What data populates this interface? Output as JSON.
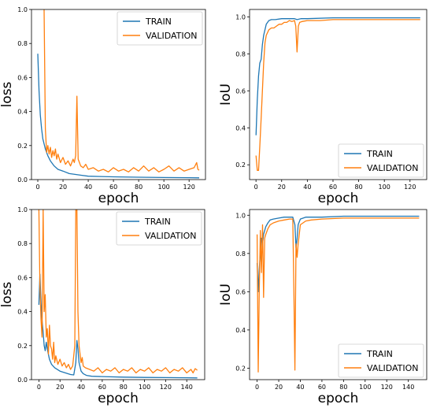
{
  "colors": {
    "train": "#1f77b4",
    "validation": "#ff7f0e"
  },
  "chart_data": [
    {
      "type": "line",
      "xlabel": "epoch",
      "ylabel": "loss",
      "xlim": [
        -5,
        133
      ],
      "ylim": [
        0,
        1
      ],
      "xticks": [
        0,
        20,
        40,
        60,
        80,
        100,
        120
      ],
      "yticks": [
        0.0,
        0.2,
        0.4,
        0.6,
        0.8,
        1.0
      ],
      "ytick_labels": [
        "0.0",
        "0.2",
        "0.4",
        "0.6",
        "0.8",
        "1.0"
      ],
      "legend": "top-right",
      "grid": false,
      "series": [
        {
          "name": "TRAIN",
          "color_key": "train",
          "x": [
            0,
            1,
            2,
            3,
            4,
            6,
            8,
            10,
            13,
            16,
            20,
            25,
            30,
            35,
            40,
            50,
            60,
            80,
            100,
            120,
            128
          ],
          "y": [
            0.74,
            0.52,
            0.38,
            0.3,
            0.24,
            0.18,
            0.14,
            0.11,
            0.08,
            0.06,
            0.05,
            0.035,
            0.03,
            0.025,
            0.02,
            0.018,
            0.016,
            0.014,
            0.012,
            0.011,
            0.01
          ]
        },
        {
          "name": "VALIDATION",
          "color_key": "validation",
          "x": [
            5,
            6,
            7,
            8,
            9,
            10,
            11,
            12,
            13,
            14,
            15,
            16,
            18,
            20,
            22,
            24,
            26,
            28,
            29,
            30,
            31,
            32,
            33,
            34,
            36,
            38,
            40,
            44,
            48,
            52,
            56,
            60,
            64,
            68,
            72,
            76,
            80,
            84,
            88,
            92,
            96,
            100,
            104,
            108,
            112,
            116,
            120,
            124,
            126,
            127,
            128
          ],
          "y": [
            1.0,
            0.3,
            0.16,
            0.2,
            0.15,
            0.19,
            0.13,
            0.17,
            0.14,
            0.18,
            0.12,
            0.15,
            0.1,
            0.13,
            0.09,
            0.11,
            0.08,
            0.12,
            0.1,
            0.14,
            0.49,
            0.12,
            0.1,
            0.08,
            0.07,
            0.09,
            0.06,
            0.07,
            0.05,
            0.06,
            0.045,
            0.07,
            0.05,
            0.06,
            0.045,
            0.07,
            0.05,
            0.08,
            0.05,
            0.07,
            0.045,
            0.06,
            0.08,
            0.05,
            0.07,
            0.05,
            0.06,
            0.07,
            0.1,
            0.06,
            0.055
          ]
        }
      ]
    },
    {
      "type": "line",
      "xlabel": "epoch",
      "ylabel": "IoU",
      "xlim": [
        -5,
        133
      ],
      "ylim": [
        0.12,
        1.04
      ],
      "xticks": [
        0,
        20,
        40,
        60,
        80,
        100,
        120
      ],
      "yticks": [
        0.2,
        0.4,
        0.6,
        0.8,
        1.0
      ],
      "ytick_labels": [
        "0.2",
        "0.4",
        "0.6",
        "0.8",
        "1.0"
      ],
      "legend": "bottom-right",
      "grid": false,
      "series": [
        {
          "name": "TRAIN",
          "color_key": "train",
          "x": [
            0,
            1,
            2,
            3,
            4,
            5,
            6,
            8,
            10,
            12,
            15,
            20,
            25,
            30,
            32,
            35,
            40,
            60,
            80,
            100,
            120,
            128
          ],
          "y": [
            0.36,
            0.55,
            0.68,
            0.75,
            0.77,
            0.85,
            0.9,
            0.96,
            0.98,
            0.985,
            0.985,
            0.99,
            0.99,
            0.99,
            0.985,
            0.99,
            0.99,
            0.995,
            0.995,
            0.995,
            0.995,
            0.995
          ]
        },
        {
          "name": "VALIDATION",
          "color_key": "validation",
          "x": [
            0,
            1,
            2,
            3,
            4,
            5,
            6,
            7,
            8,
            10,
            12,
            14,
            16,
            18,
            20,
            22,
            24,
            26,
            28,
            30,
            31,
            32,
            33,
            34,
            36,
            40,
            50,
            60,
            80,
            100,
            120,
            128
          ],
          "y": [
            0.25,
            0.17,
            0.17,
            0.3,
            0.45,
            0.6,
            0.75,
            0.86,
            0.9,
            0.93,
            0.94,
            0.94,
            0.95,
            0.96,
            0.96,
            0.97,
            0.97,
            0.98,
            0.975,
            0.98,
            0.95,
            0.81,
            0.95,
            0.97,
            0.975,
            0.98,
            0.98,
            0.985,
            0.985,
            0.985,
            0.985,
            0.985
          ]
        }
      ]
    },
    {
      "type": "line",
      "xlabel": "epoch",
      "ylabel": "loss",
      "xlim": [
        -7,
        157
      ],
      "ylim": [
        0,
        1
      ],
      "xticks": [
        0,
        20,
        40,
        60,
        80,
        100,
        120,
        140
      ],
      "yticks": [
        0.0,
        0.2,
        0.4,
        0.6,
        0.8,
        1.0
      ],
      "ytick_labels": [
        "0.0",
        "0.2",
        "0.4",
        "0.6",
        "0.8",
        "1.0"
      ],
      "legend": "top-right",
      "grid": false,
      "series": [
        {
          "name": "TRAIN",
          "color_key": "train",
          "x": [
            0,
            1,
            2,
            3,
            4,
            5,
            6,
            7,
            8,
            10,
            12,
            15,
            20,
            25,
            30,
            33,
            35,
            36,
            37,
            38,
            40,
            42,
            45,
            50,
            60,
            80,
            100,
            120,
            140,
            150
          ],
          "y": [
            0.44,
            0.62,
            0.45,
            0.35,
            0.28,
            0.2,
            0.17,
            0.22,
            0.18,
            0.12,
            0.09,
            0.07,
            0.05,
            0.04,
            0.03,
            0.028,
            0.1,
            0.23,
            0.18,
            0.1,
            0.05,
            0.035,
            0.025,
            0.02,
            0.018,
            0.015,
            0.013,
            0.012,
            0.011,
            0.01
          ]
        },
        {
          "name": "VALIDATION",
          "color_key": "validation",
          "x": [
            0,
            1,
            2,
            3,
            4,
            5,
            6,
            7,
            8,
            9,
            10,
            11,
            12,
            13,
            14,
            15,
            16,
            18,
            20,
            22,
            24,
            26,
            28,
            30,
            32,
            34,
            35,
            36,
            37,
            38,
            39,
            40,
            41,
            42,
            44,
            48,
            52,
            56,
            60,
            64,
            68,
            72,
            76,
            80,
            84,
            88,
            92,
            96,
            100,
            104,
            108,
            112,
            116,
            120,
            124,
            128,
            132,
            136,
            140,
            144,
            146,
            148,
            150
          ],
          "y": [
            1.0,
            0.55,
            0.35,
            0.25,
            1.0,
            0.4,
            0.5,
            0.25,
            0.3,
            0.15,
            0.32,
            0.2,
            0.18,
            0.12,
            0.22,
            0.1,
            0.14,
            0.09,
            0.12,
            0.08,
            0.1,
            0.07,
            0.09,
            0.06,
            0.08,
            0.2,
            1.0,
            1.0,
            0.4,
            0.2,
            0.15,
            0.1,
            0.13,
            0.08,
            0.07,
            0.06,
            0.05,
            0.07,
            0.04,
            0.06,
            0.05,
            0.07,
            0.04,
            0.06,
            0.05,
            0.07,
            0.04,
            0.06,
            0.05,
            0.07,
            0.04,
            0.06,
            0.05,
            0.07,
            0.04,
            0.06,
            0.05,
            0.07,
            0.04,
            0.06,
            0.04,
            0.065,
            0.055
          ]
        }
      ]
    },
    {
      "type": "line",
      "xlabel": "epoch",
      "ylabel": "IoU",
      "xlim": [
        -7,
        157
      ],
      "ylim": [
        0.14,
        1.03
      ],
      "xticks": [
        0,
        20,
        40,
        60,
        80,
        100,
        120,
        140
      ],
      "yticks": [
        0.2,
        0.4,
        0.6,
        0.8,
        1.0
      ],
      "ytick_labels": [
        "0.2",
        "0.4",
        "0.6",
        "0.8",
        "1.0"
      ],
      "legend": "bottom-right",
      "grid": false,
      "series": [
        {
          "name": "TRAIN",
          "color_key": "train",
          "x": [
            0,
            1,
            2,
            3,
            4,
            5,
            6,
            8,
            10,
            12,
            15,
            20,
            25,
            30,
            33,
            35,
            36,
            37,
            38,
            40,
            45,
            50,
            60,
            80,
            100,
            120,
            140,
            150
          ],
          "y": [
            0.75,
            0.6,
            0.72,
            0.8,
            0.88,
            0.85,
            0.9,
            0.94,
            0.96,
            0.975,
            0.98,
            0.985,
            0.99,
            0.99,
            0.99,
            0.95,
            0.83,
            0.88,
            0.95,
            0.98,
            0.99,
            0.99,
            0.99,
            0.995,
            0.995,
            0.995,
            0.995,
            0.995
          ]
        },
        {
          "name": "VALIDATION",
          "color_key": "validation",
          "x": [
            0,
            1,
            2,
            3,
            4,
            5,
            6,
            7,
            8,
            10,
            12,
            15,
            20,
            25,
            30,
            33,
            34,
            35,
            36,
            37,
            38,
            40,
            45,
            50,
            60,
            80,
            100,
            120,
            140,
            150
          ],
          "y": [
            0.9,
            0.18,
            0.6,
            0.92,
            0.7,
            0.95,
            0.57,
            0.88,
            0.9,
            0.93,
            0.95,
            0.96,
            0.97,
            0.975,
            0.98,
            0.98,
            0.6,
            0.19,
            0.85,
            0.78,
            0.85,
            0.95,
            0.97,
            0.975,
            0.98,
            0.985,
            0.985,
            0.985,
            0.985,
            0.985
          ]
        }
      ]
    }
  ]
}
